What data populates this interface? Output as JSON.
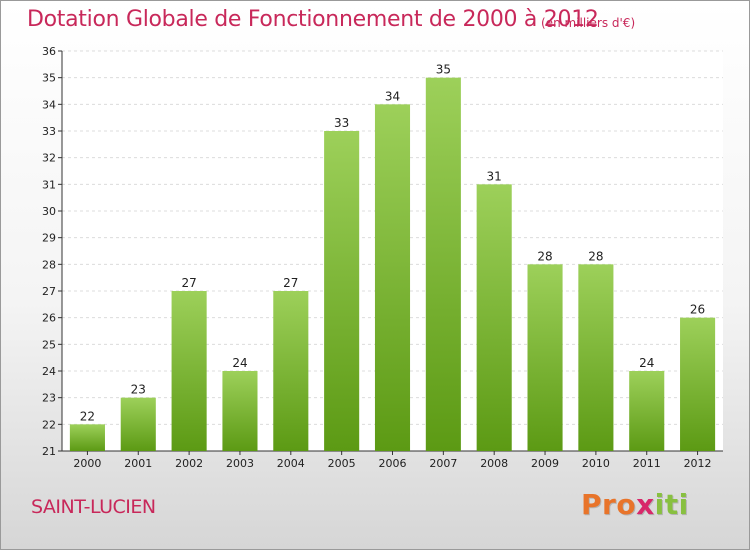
{
  "title": "Dotation Globale de Fonctionnement de 2000 à 2012",
  "subtitle": "(en milliers d'€)",
  "commune": "SAINT-LUCIEN",
  "logo": {
    "parts": [
      "Pro",
      "x",
      "iti"
    ],
    "name": "proxiti-logo"
  },
  "colors": {
    "title": "#c8285a",
    "bar_top": "#9dd05a",
    "bar_bottom": "#5c9a14"
  },
  "chart_data": {
    "type": "bar",
    "title": "Dotation Globale de Fonctionnement de 2000 à 2012",
    "subtitle": "(en milliers d'€)",
    "categories": [
      "2000",
      "2001",
      "2002",
      "2003",
      "2004",
      "2005",
      "2006",
      "2007",
      "2008",
      "2009",
      "2010",
      "2011",
      "2012"
    ],
    "values": [
      22,
      23,
      27,
      24,
      27,
      33,
      34,
      35,
      31,
      28,
      28,
      24,
      26
    ],
    "ylim": [
      21,
      36
    ],
    "yticks": [
      21,
      22,
      23,
      24,
      25,
      26,
      27,
      28,
      29,
      30,
      31,
      32,
      33,
      34,
      35,
      36
    ],
    "grid": true,
    "xlabel": "",
    "ylabel": ""
  }
}
